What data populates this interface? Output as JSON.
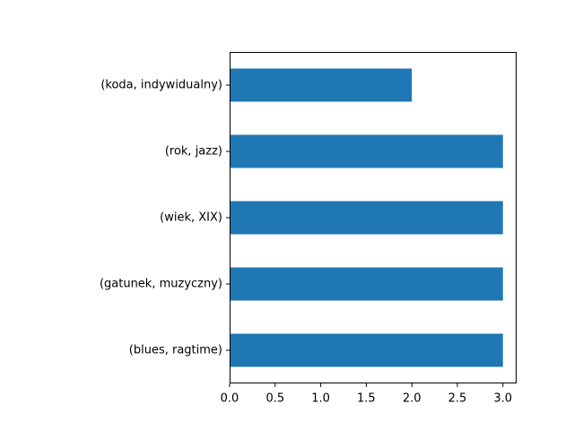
{
  "chart_data": {
    "type": "bar",
    "orientation": "horizontal",
    "categories": [
      "(blues, ragtime)",
      "(gatunek, muzyczny)",
      "(wiek, XIX)",
      "(rok, jazz)",
      "(koda, indywidualny)"
    ],
    "values": [
      3,
      3,
      3,
      3,
      2
    ],
    "xlim": [
      0,
      3.15
    ],
    "xticks": [
      "0.0",
      "0.5",
      "1.0",
      "1.5",
      "2.0",
      "2.5",
      "3.0"
    ],
    "grid": false,
    "bar_color": "#1f77b4",
    "title": "",
    "xlabel": "",
    "ylabel": ""
  }
}
